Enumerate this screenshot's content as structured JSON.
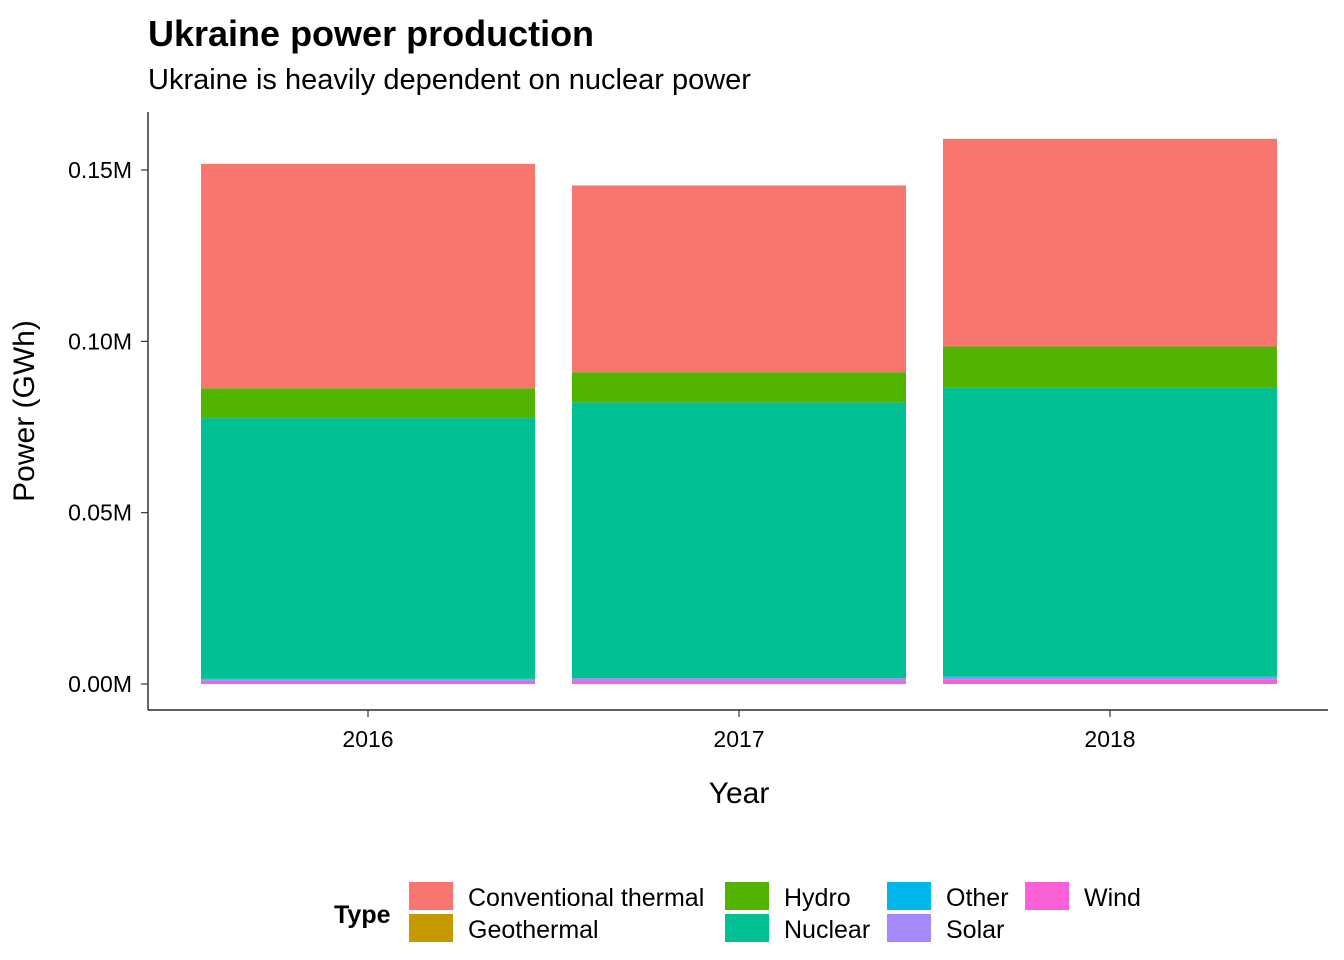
{
  "chart_data": {
    "type": "bar",
    "stacked": true,
    "title": "Ukraine power production",
    "subtitle": "Ukraine is heavily dependent on nuclear power",
    "xlabel": "Year",
    "ylabel": "Power (GWh)",
    "categories": [
      "2016",
      "2017",
      "2018"
    ],
    "ylim": [
      0,
      0.165
    ],
    "y_unit_suffix": "M",
    "y_ticks": [
      0.0,
      0.05,
      0.1,
      0.15
    ],
    "y_tick_labels": [
      "0.00M",
      "0.05M",
      "0.10M",
      "0.15M"
    ],
    "grid": false,
    "legend": {
      "title": "Type",
      "position": "bottom",
      "entries": [
        {
          "name": "Conventional thermal",
          "color": "#F8766D"
        },
        {
          "name": "Geothermal",
          "color": "#C49A00"
        },
        {
          "name": "Hydro",
          "color": "#53B400"
        },
        {
          "name": "Nuclear",
          "color": "#00C094"
        },
        {
          "name": "Other",
          "color": "#00B6EB"
        },
        {
          "name": "Solar",
          "color": "#A58AFF"
        },
        {
          "name": "Wind",
          "color": "#FB61D7"
        }
      ]
    },
    "series": [
      {
        "name": "Wind",
        "color": "#FB61D7",
        "values": [
          0.0009,
          0.001,
          0.0012
        ]
      },
      {
        "name": "Solar",
        "color": "#A58AFF",
        "values": [
          0.0006,
          0.0007,
          0.0009
        ]
      },
      {
        "name": "Other",
        "color": "#00B6EB",
        "values": [
          0,
          0,
          0
        ]
      },
      {
        "name": "Nuclear",
        "color": "#00C094",
        "values": [
          0.0761,
          0.0805,
          0.0844
        ]
      },
      {
        "name": "Hydro",
        "color": "#53B400",
        "values": [
          0.0087,
          0.0088,
          0.012
        ]
      },
      {
        "name": "Geothermal",
        "color": "#C49A00",
        "values": [
          0,
          0,
          0
        ]
      },
      {
        "name": "Conventional thermal",
        "color": "#F8766D",
        "values": [
          0.0655,
          0.0545,
          0.0606
        ]
      }
    ]
  }
}
